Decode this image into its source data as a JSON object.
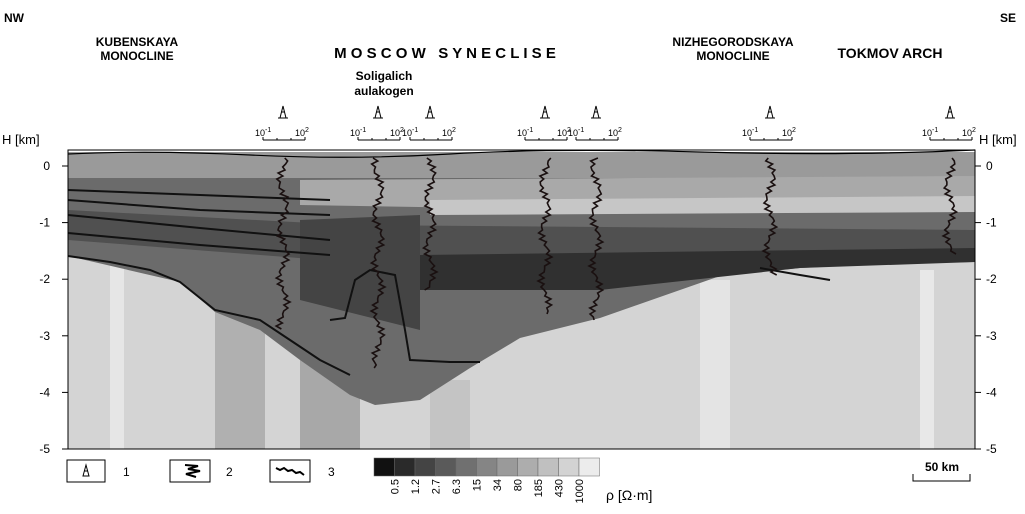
{
  "header": {
    "left": "NW",
    "right": "SE",
    "regions": [
      "KUBENSKAYA",
      "MONOCLINE",
      "M O S C O W   S Y N E C L I S E",
      "Soligalich",
      "aulakogen",
      "NIZHEGORODSKAYA",
      "MONOCLINE",
      "TOKMOV ARCH"
    ]
  },
  "well_scale": {
    "low": {
      "base": "10",
      "exp": "-1"
    },
    "high": {
      "base": "10",
      "exp": "2"
    }
  },
  "depth_axis": {
    "label": "H [km]",
    "ticks": [
      0,
      -1,
      -2,
      -3,
      -4,
      -5
    ]
  },
  "legend": {
    "items": [
      "1",
      "2",
      "3"
    ],
    "scale_values": [
      "0.5",
      "1.2",
      "2.7",
      "6.3",
      "15",
      "34",
      "80",
      "185",
      "430",
      "1000"
    ],
    "unit": "ρ [Ω·m]"
  },
  "scale_bar": "50 km"
}
